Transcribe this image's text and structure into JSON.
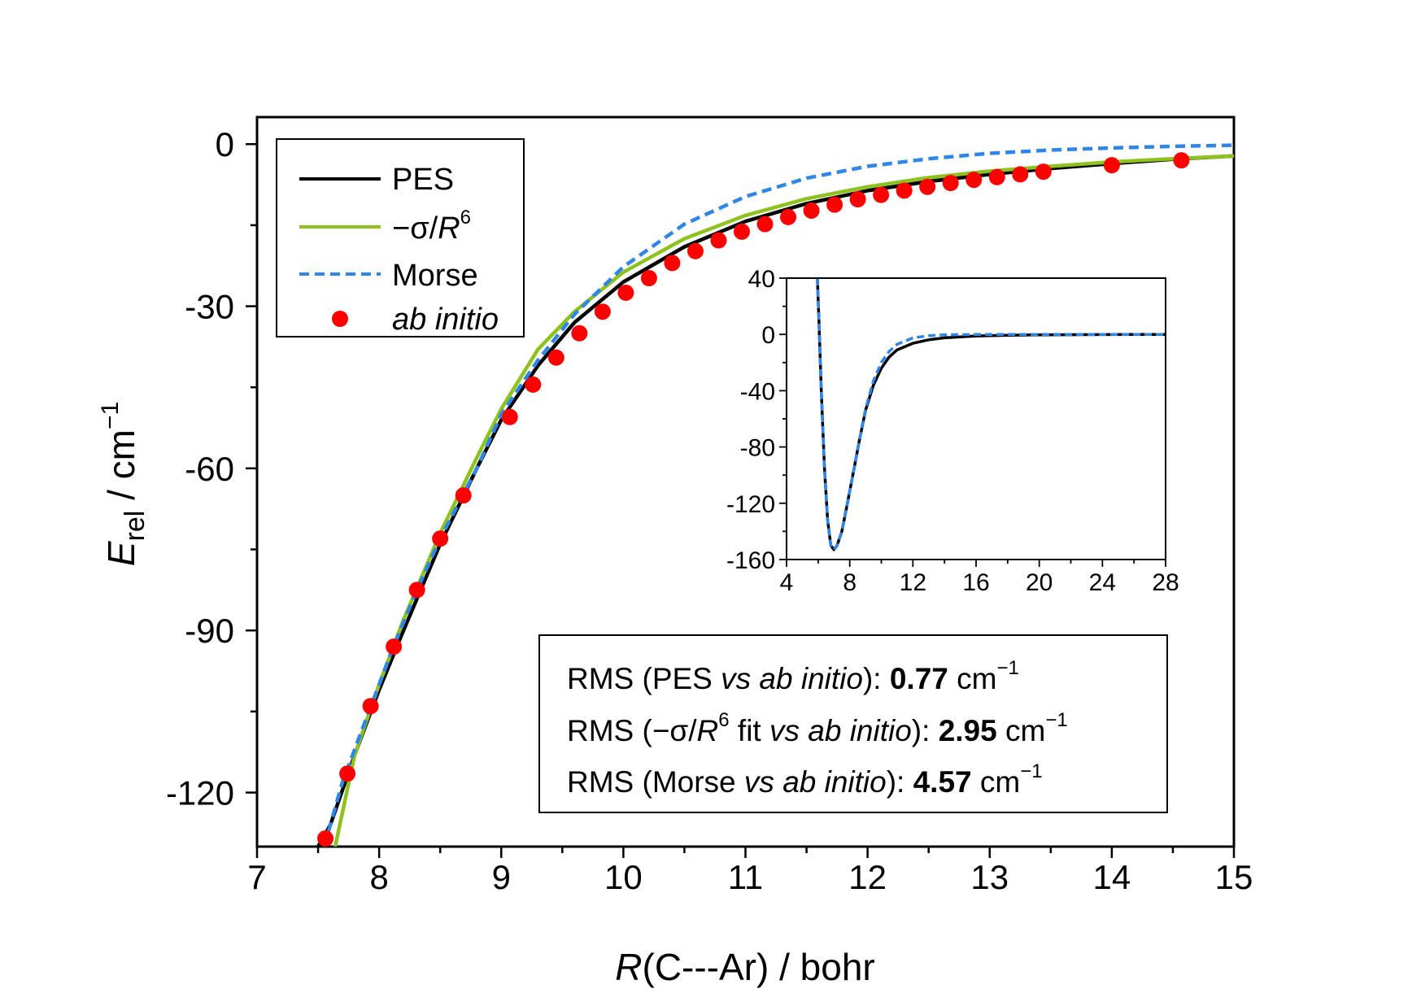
{
  "chart_data": [
    {
      "type": "line",
      "xlim": [
        7,
        15
      ],
      "ylim": [
        -130,
        5
      ],
      "xticks": [
        7,
        8,
        9,
        10,
        11,
        12,
        13,
        14,
        15
      ],
      "yticks": [
        0,
        -30,
        -60,
        -90,
        -120
      ],
      "xlabel": {
        "italic": "R",
        "rest": "(C---Ar) / bohr"
      },
      "ylabel": {
        "italic": "E",
        "sub": "rel",
        "rest": " / cm",
        "sup": "−1"
      },
      "legend_position": "top-left",
      "series": [
        {
          "name": "PES",
          "style": "solid",
          "color": "#000000",
          "x": [
            7.5,
            7.6,
            7.8,
            8.0,
            8.2,
            8.5,
            8.8,
            9.0,
            9.3,
            9.6,
            10.0,
            10.5,
            11.0,
            11.5,
            12.0,
            12.5,
            13.0,
            13.5,
            14.0,
            14.5,
            15.0
          ],
          "y": [
            -130,
            -126,
            -113,
            -101,
            -90,
            -74,
            -60,
            -51,
            -41,
            -33,
            -25.5,
            -19,
            -14.3,
            -11,
            -8.6,
            -6.9,
            -5.6,
            -4.5,
            -3.6,
            -2.8,
            -2.2
          ]
        },
        {
          "name": "−σ/R⁶",
          "style": "solid",
          "color": "#8dc21f",
          "x": [
            7.64,
            7.8,
            8.0,
            8.2,
            8.5,
            8.8,
            9.0,
            9.3,
            9.6,
            10.0,
            10.5,
            11.0,
            11.5,
            12.0,
            12.5,
            13.0,
            13.5,
            14.0,
            14.5,
            15.0
          ],
          "y": [
            -130,
            -113,
            -100,
            -88,
            -72,
            -58,
            -49,
            -38,
            -31,
            -23.7,
            -17.5,
            -13.2,
            -10.1,
            -7.9,
            -6.2,
            -5.0,
            -4.1,
            -3.3,
            -2.7,
            -2.2
          ]
        },
        {
          "name": "Morse",
          "style": "dashed",
          "color": "#2f86e6",
          "x": [
            7.55,
            7.7,
            7.9,
            8.1,
            8.3,
            8.5,
            8.8,
            9.0,
            9.3,
            9.6,
            10.0,
            10.5,
            11.0,
            11.5,
            12.0,
            12.5,
            13.0,
            13.5,
            14.0,
            14.5,
            15.0
          ],
          "y": [
            -130,
            -118,
            -106,
            -94,
            -83,
            -73,
            -60,
            -50,
            -40,
            -31.5,
            -22.7,
            -14.8,
            -9.7,
            -6.3,
            -4.1,
            -2.7,
            -1.7,
            -1.1,
            -0.7,
            -0.4,
            -0.2
          ]
        },
        {
          "name": "ab initio",
          "style": "markers",
          "color": "#ff0000",
          "x": [
            7.56,
            7.74,
            7.93,
            8.12,
            8.31,
            8.5,
            8.69,
            9.07,
            9.26,
            9.45,
            9.64,
            9.83,
            10.02,
            10.21,
            10.4,
            10.59,
            10.78,
            10.97,
            11.16,
            11.35,
            11.54,
            11.73,
            11.92,
            12.11,
            12.3,
            12.49,
            12.68,
            12.87,
            13.06,
            13.25,
            13.44,
            14.0,
            14.57
          ],
          "y": [
            -128.5,
            -116.5,
            -104,
            -93,
            -82.5,
            -73,
            -65,
            -50.5,
            -44.5,
            -39.5,
            -35,
            -31,
            -27.5,
            -24.8,
            -22,
            -19.8,
            -17.8,
            -16.2,
            -14.8,
            -13.5,
            -12.3,
            -11.2,
            -10.2,
            -9.4,
            -8.6,
            -7.9,
            -7.2,
            -6.6,
            -6.1,
            -5.6,
            -5.1,
            -3.9,
            -3.0
          ]
        }
      ]
    },
    {
      "type": "line",
      "inset": true,
      "xlim": [
        4,
        28
      ],
      "ylim": [
        -160,
        40
      ],
      "xticks": [
        4,
        8,
        12,
        16,
        20,
        24,
        28
      ],
      "yticks": [
        40,
        0,
        -40,
        -80,
        -120,
        -160
      ],
      "series": [
        {
          "style": "solid",
          "color": "#000000",
          "x": [
            5.95,
            6.05,
            6.2,
            6.4,
            6.6,
            6.8,
            7.0,
            7.2,
            7.5,
            7.8,
            8.2,
            8.6,
            9.0,
            9.5,
            10.0,
            10.5,
            11.0,
            12.0,
            13.0,
            14.0,
            16.0,
            18.0,
            20.0,
            24.0,
            28.0
          ],
          "y": [
            40,
            10,
            -40,
            -95,
            -132,
            -150,
            -153,
            -150,
            -140,
            -123,
            -100,
            -76,
            -54,
            -36,
            -24,
            -16,
            -11,
            -6.3,
            -3.8,
            -2.4,
            -1.1,
            -0.6,
            -0.3,
            -0.1,
            0
          ]
        },
        {
          "style": "dashed",
          "color": "#2f86e6",
          "x": [
            5.95,
            6.05,
            6.2,
            6.4,
            6.6,
            6.8,
            7.0,
            7.2,
            7.5,
            7.8,
            8.2,
            8.6,
            9.0,
            9.5,
            10.0,
            10.5,
            11.0,
            12.0,
            13.0,
            14.0,
            16.0,
            18.0,
            20.0,
            24.0,
            28.0
          ],
          "y": [
            40,
            10,
            -40,
            -95,
            -132,
            -150,
            -153,
            -150,
            -140,
            -123,
            -100,
            -76,
            -53,
            -33,
            -20,
            -12,
            -7,
            -2.5,
            -0.9,
            -0.3,
            -0.05,
            0,
            0,
            0,
            0
          ]
        }
      ]
    }
  ],
  "legend": {
    "pes": "PES",
    "sigma_prefix": "−σ/",
    "sigma_R": "R",
    "sigma_exp": "6",
    "morse": "Morse",
    "abinitio": "ab initio"
  },
  "rms": [
    {
      "pre": "RMS (PES ",
      "it1": "vs",
      "sp": " ",
      "it2": "ab initio",
      "post": "): ",
      "value": "0.77",
      "unit": " cm",
      "unit_sup": "−1"
    },
    {
      "pre": "RMS (−σ/",
      "itR": "R",
      "exp": "6",
      "mid": " fit ",
      "it1": "vs",
      "sp": " ",
      "it2": "ab initio",
      "post": "): ",
      "value": "2.95",
      "unit": " cm",
      "unit_sup": "−1"
    },
    {
      "pre": "RMS (Morse ",
      "it1": "vs",
      "sp": " ",
      "it2": "ab initio",
      "post": "): ",
      "value": "4.57",
      "unit": " cm",
      "unit_sup": "−1"
    }
  ]
}
